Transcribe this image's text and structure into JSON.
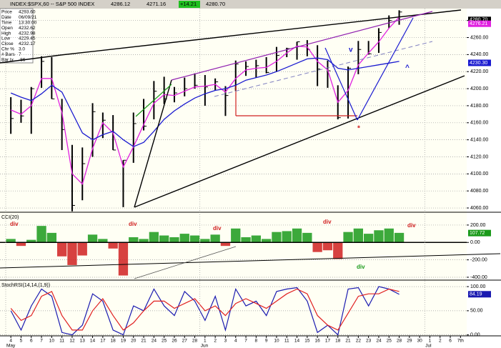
{
  "chart_data": [
    {
      "type": "ohlc",
      "title": "INDEX:$SPX,60 -- S&P 500 INDEX",
      "header_values": [
        "4286.12",
        "4271.16",
        "+14.21",
        "4280.70"
      ],
      "info": [
        [
          "Price",
          "4293.60"
        ],
        [
          "Date",
          "06/09/21"
        ],
        [
          "Time",
          "13:30:00"
        ],
        [
          "Open",
          "4232.62"
        ],
        [
          "High",
          "4232.98"
        ],
        [
          "Low",
          "4229.45"
        ],
        [
          "Close",
          "4232.17"
        ],
        [
          "Chr %",
          "3.0"
        ],
        [
          "# Bars",
          "7"
        ],
        [
          "Bar Ix",
          "-86"
        ]
      ],
      "categories": [
        "4",
        "5",
        "6",
        "7",
        "10",
        "11",
        "12",
        "13",
        "14",
        "17",
        "18",
        "19",
        "20",
        "21",
        "24",
        "25",
        "26",
        "27",
        "28",
        "1",
        "2",
        "3",
        "4",
        "7",
        "8",
        "9",
        "10",
        "11",
        "14",
        "15",
        "16",
        "17",
        "18",
        "21",
        "22",
        "23",
        "24",
        "25",
        "28",
        "29",
        "30",
        "1",
        "2",
        "6",
        "7th"
      ],
      "month_labels": [
        {
          "label": "May",
          "category": 0
        },
        {
          "label": "Jun",
          "category": 19
        },
        {
          "label": "Jul",
          "category": 41
        }
      ],
      "high": [
        4190,
        4187,
        4202,
        4238,
        4237,
        4188,
        4134,
        4131,
        4183,
        4172,
        4169,
        4116,
        4172,
        4188,
        4209,
        4214,
        4202,
        4213,
        4218,
        4216,
        4212,
        4203,
        4233,
        4232,
        4234,
        4237,
        4249,
        4248,
        4255,
        4257,
        4251,
        4233,
        4204,
        4226,
        4256,
        4256,
        4271,
        4286,
        4292,
        null,
        null,
        null,
        null,
        null,
        null
      ],
      "low": [
        4147,
        4160,
        4147,
        4201,
        4188,
        4128,
        4056,
        4069,
        4120,
        4142,
        4128,
        4061,
        4113,
        4151,
        4164,
        4182,
        4184,
        4191,
        4200,
        4180,
        4198,
        4168,
        4197,
        4215,
        4213,
        4218,
        4220,
        4237,
        4234,
        4238,
        4203,
        4201,
        4164,
        4165,
        4217,
        4240,
        4242,
        4271,
        4275,
        null,
        null,
        null,
        null,
        null,
        null
      ],
      "close": [
        4165,
        4168,
        4200,
        4232,
        4188,
        4152,
        4063,
        4112,
        4173,
        4163,
        4128,
        4116,
        4159,
        4156,
        4197,
        4188,
        4195,
        4200,
        4204,
        4202,
        4208,
        4192,
        4229,
        4226,
        4227,
        4219,
        4239,
        4247,
        4255,
        4246,
        4223,
        4221,
        4166,
        4224,
        4246,
        4241,
        4266,
        4280,
        4290,
        null,
        null,
        null,
        null,
        null,
        null
      ],
      "color": "#000000",
      "series": [
        {
          "color": "#e020e0",
          "values": [
            4175,
            4170,
            4180,
            4212,
            4212,
            4172,
            4100,
            4088,
            4130,
            4160,
            4148,
            4108,
            4132,
            4158,
            4183,
            4193,
            4192,
            4197,
            4202,
            4203,
            4205,
            4196,
            4212,
            4222,
            4224,
            4225,
            4232,
            4242,
            4250,
            4249,
            4232,
            4222,
            4184,
            4198,
            4228,
            4242,
            4255,
            4271,
            4284,
            null,
            null,
            null,
            null,
            null,
            null
          ]
        },
        {
          "color": "#1a1ad0",
          "values": [
            4195,
            4190,
            4186,
            4194,
            4204,
            4196,
            4172,
            4148,
            4140,
            4146,
            4150,
            4140,
            4132,
            4137,
            4150,
            4164,
            4174,
            4182,
            4189,
            4194,
            4198,
            4200,
            4204,
            4210,
            4213,
            4216,
            4220,
            4225,
            4230,
            4235,
            4236,
            4234,
            4224,
            4222,
            4224,
            4226,
            4228,
            4230,
            4232,
            null,
            null,
            null,
            null,
            null,
            null
          ]
        }
      ],
      "last_labels": [
        {
          "value": 4280.7,
          "label": "4280.70",
          "color": "#000000"
        },
        {
          "value": 4276.21,
          "label": "4276.21",
          "color": "#e020e0"
        },
        {
          "value": 4230.3,
          "label": "4230.30",
          "color": "#1a1ad0"
        }
      ],
      "annotations": [
        "v",
        "^",
        "*"
      ],
      "ylim": [
        4055,
        4294
      ],
      "yticks": [
        {
          "value": 4060,
          "label": "4060.00"
        },
        {
          "value": 4080,
          "label": "4080.00"
        },
        {
          "value": 4100,
          "label": "4100.00"
        },
        {
          "value": 4120,
          "label": "4120.00"
        },
        {
          "value": 4140,
          "label": "4140.00"
        },
        {
          "value": 4160,
          "label": "4160.00"
        },
        {
          "value": 4180,
          "label": "4180.00"
        },
        {
          "value": 4200,
          "label": "4200.00"
        },
        {
          "value": 4220,
          "label": "4220.00"
        },
        {
          "value": 4240,
          "label": "4240.00"
        },
        {
          "value": 4260,
          "label": "4260.00"
        },
        {
          "value": 4280,
          "label": "4280.00"
        }
      ],
      "grid": true
    },
    {
      "type": "bar",
      "title": "CCI(20)",
      "values": [
        40,
        -40,
        30,
        190,
        110,
        -160,
        -260,
        -150,
        90,
        40,
        -70,
        -380,
        60,
        40,
        120,
        80,
        60,
        100,
        80,
        40,
        90,
        -40,
        160,
        60,
        80,
        40,
        120,
        130,
        160,
        110,
        -110,
        -90,
        -190,
        120,
        160,
        100,
        140,
        160,
        110,
        null,
        null,
        null,
        null,
        null,
        null
      ],
      "pos_color": "#1a9a1a",
      "neg_color": "#d02020",
      "last_labels": [
        {
          "value": 107.72,
          "label": "107.72",
          "color": "#1a9a1a"
        }
      ],
      "annotations": [
        "div",
        "div",
        "div",
        "div",
        "div",
        "div"
      ],
      "ylim": [
        -433,
        339
      ],
      "yticks": [
        {
          "value": 200,
          "label": "200.00"
        },
        {
          "value": 0,
          "label": "0.00"
        },
        {
          "value": -200,
          "label": "-200.00"
        },
        {
          "value": -400,
          "label": "-400.00"
        }
      ],
      "grid": true
    },
    {
      "type": "line",
      "title": "StochRSI(14,14,(1,9))",
      "series": [
        {
          "color": "#1a1ab0",
          "values": [
            50,
            10,
            60,
            95,
            80,
            5,
            0,
            20,
            85,
            70,
            10,
            0,
            60,
            50,
            95,
            60,
            40,
            90,
            70,
            30,
            80,
            10,
            95,
            60,
            70,
            40,
            90,
            95,
            98,
            70,
            5,
            20,
            0,
            95,
            98,
            60,
            100,
            95,
            84,
            null,
            null,
            null,
            null,
            null,
            null
          ]
        },
        {
          "color": "#e02020",
          "values": [
            55,
            30,
            40,
            80,
            90,
            40,
            10,
            10,
            50,
            75,
            40,
            10,
            25,
            50,
            70,
            70,
            55,
            65,
            75,
            50,
            60,
            40,
            65,
            75,
            65,
            55,
            70,
            85,
            95,
            85,
            40,
            20,
            10,
            45,
            80,
            85,
            85,
            95,
            90,
            null,
            null,
            null,
            null,
            null,
            null
          ]
        }
      ],
      "last_labels": [
        {
          "value": 84.19,
          "label": "84.19",
          "color": "#1a1ab0"
        }
      ],
      "ylim": [
        -2,
        112
      ],
      "yticks": [
        {
          "value": 100,
          "label": "100.00"
        },
        {
          "value": 50,
          "label": "50.00"
        },
        {
          "value": 0,
          "label": "0.00"
        }
      ],
      "grid": true
    }
  ]
}
